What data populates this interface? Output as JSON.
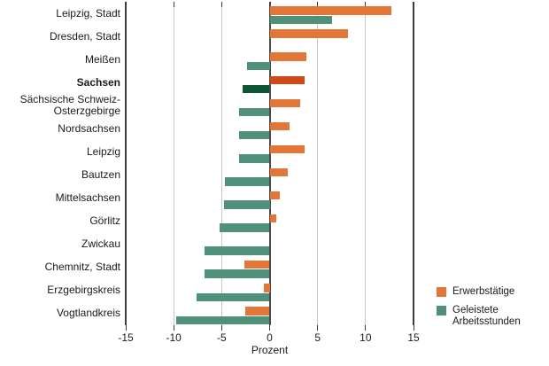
{
  "chart_data": {
    "type": "bar",
    "orientation": "horizontal",
    "title": "",
    "xlabel": "Prozent",
    "xlim": [
      -15,
      15
    ],
    "xticks": [
      -15,
      -10,
      -5,
      0,
      5,
      10,
      15
    ],
    "grid": true,
    "legend_position": "bottom-right",
    "highlight_category": "Sachsen",
    "categories": [
      "Leipzig, Stadt",
      "Dresden, Stadt",
      "Meißen",
      "Sachsen",
      "Sächsische Schweiz-\nOsterzgebirge",
      "Nordsachsen",
      "Leipzig",
      "Bautzen",
      "Mittelsachsen",
      "Görlitz",
      "Zwickau",
      "Chemnitz, Stadt",
      "Erzgebirgskreis",
      "Vogtlandkreis"
    ],
    "series": [
      {
        "name": "Erwerbstätige",
        "color": "#E17636",
        "highlight_color": "#CE4A16",
        "values": [
          12.7,
          8.2,
          3.8,
          3.6,
          3.2,
          2.1,
          3.6,
          1.9,
          1.1,
          0.7,
          0.0,
          -2.6,
          -0.6,
          -2.5
        ]
      },
      {
        "name": "Geleistete Arbeitsstunden",
        "color": "#4E9078",
        "highlight_color": "#0D5434",
        "values": [
          6.5,
          0.0,
          -2.4,
          -2.8,
          -3.2,
          -3.2,
          -3.2,
          -4.7,
          -4.8,
          -5.2,
          -6.8,
          -6.8,
          -7.6,
          -9.7
        ]
      }
    ],
    "colors": {
      "grid": "#c6c6c6",
      "axis": "#3c3c3c",
      "text": "#1a1a1a",
      "background": "#ffffff"
    }
  }
}
